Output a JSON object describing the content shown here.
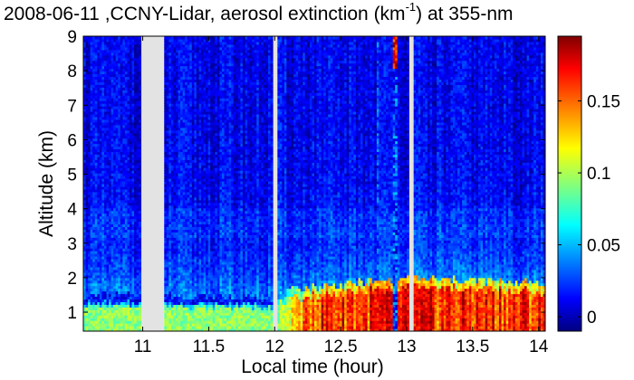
{
  "chart_data": {
    "type": "heatmap",
    "title": {
      "prefix": "2008-06-11 ,CCNY-Lidar, aerosol extinction (km",
      "superscript": "-1",
      "suffix": ") at 355-nm"
    },
    "xlabel": "Local time (hour)",
    "ylabel": "Altitude (km)",
    "xlim": [
      10.55,
      14.05
    ],
    "ylim": [
      0.45,
      9.0
    ],
    "x_ticks": [
      11,
      11.5,
      12,
      12.5,
      13,
      13.5,
      14
    ],
    "x_tick_labels": [
      "11",
      "11.5",
      "12",
      "12.5",
      "13",
      "13.5",
      "14"
    ],
    "y_ticks": [
      1,
      2,
      3,
      4,
      5,
      6,
      7,
      8,
      9
    ],
    "y_tick_labels": [
      "1",
      "2",
      "3",
      "4",
      "5",
      "6",
      "7",
      "8",
      "9"
    ],
    "colorbar": {
      "colormap": "jet",
      "range": [
        -0.01,
        0.195
      ],
      "ticks": [
        0,
        0.05,
        0.1,
        0.15
      ],
      "tick_labels": [
        "0",
        "0.05",
        "0.1",
        "0.15"
      ]
    },
    "data_gaps": [
      {
        "from": 10.99,
        "to": 11.16
      },
      {
        "from": 11.99,
        "to": 12.02
      },
      {
        "from": 13.02,
        "to": 13.05
      }
    ],
    "boundary_layer_top_km": [
      {
        "time": 10.55,
        "altitude": 1.5
      },
      {
        "time": 12.0,
        "altitude": 1.45
      },
      {
        "time": 12.2,
        "altitude": 1.7
      },
      {
        "time": 12.6,
        "altitude": 1.85
      },
      {
        "time": 13.0,
        "altitude": 2.0
      },
      {
        "time": 14.05,
        "altitude": 1.85
      }
    ],
    "cloud_spike": {
      "time": 12.92,
      "altitude_top": 9.0
    },
    "colors": {
      "gap": "#e3e3e3",
      "background": "#ffffff"
    }
  }
}
